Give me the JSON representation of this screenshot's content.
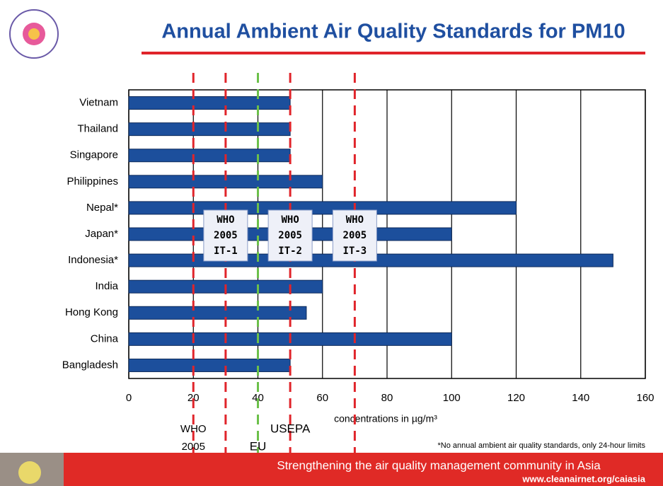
{
  "chart_data": {
    "type": "barh",
    "title": "Annual Ambient Air Quality Standards for PM10",
    "x_label": "concentrations in µg/m³",
    "categories": [
      "Vietnam",
      "Thailand",
      "Singapore",
      "Philippines",
      "Nepal*",
      "Japan*",
      "Indonesia*",
      "India",
      "Hong Kong",
      "China",
      "Bangladesh"
    ],
    "values": [
      50,
      50,
      50,
      60,
      120,
      100,
      150,
      60,
      55,
      100,
      50
    ],
    "color": "#1c4f9c",
    "xlim": [
      0,
      160
    ],
    "xticks": [
      0,
      20,
      40,
      60,
      80,
      100,
      120,
      140,
      160
    ],
    "grid": true,
    "reference_lines": [
      {
        "value": 20,
        "color": "#e0242a",
        "label": [
          "WHO",
          "2005"
        ]
      },
      {
        "value": 30,
        "color": "#e0242a",
        "box": [
          "WHO",
          "2005",
          "IT-1"
        ]
      },
      {
        "value": 40,
        "color": "#6cc04a",
        "label": [
          "EU"
        ]
      },
      {
        "value": 50,
        "color": "#e0242a",
        "label": [
          "USEPA"
        ],
        "box": [
          "WHO",
          "2005",
          "IT-2"
        ]
      },
      {
        "value": 70,
        "color": "#e0242a",
        "box": [
          "WHO",
          "2005",
          "IT-3"
        ]
      }
    ],
    "footnote": "*No annual ambient air quality standards, only 24-hour limits",
    "banner": "Strengthening the air quality management community in Asia",
    "url": "www.cleanairnet.org/caiasia"
  }
}
